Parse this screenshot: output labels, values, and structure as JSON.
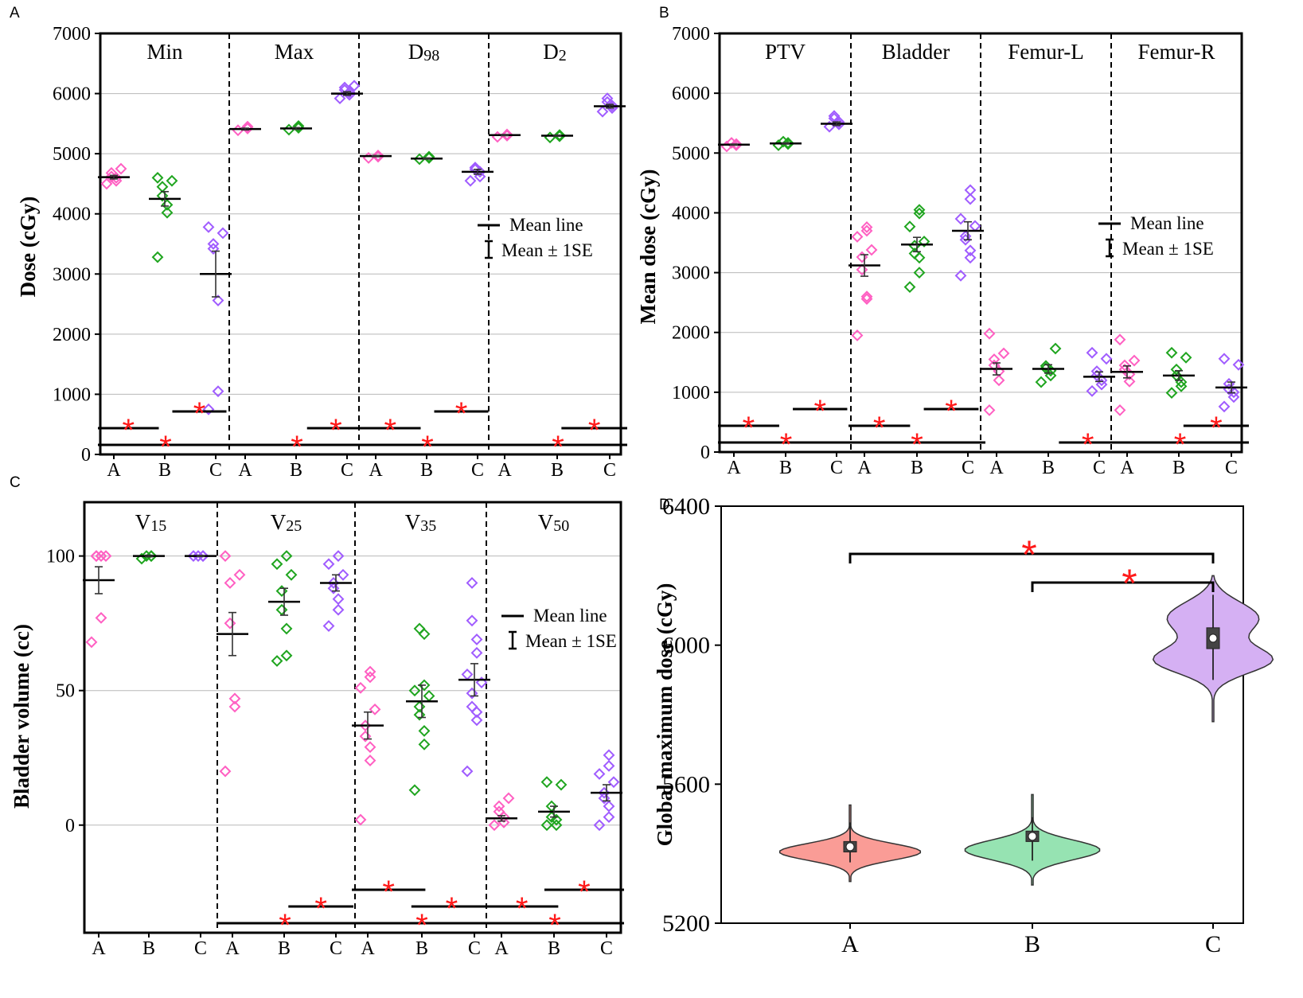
{
  "colors": {
    "A": "#ff5fc2",
    "B": "#1fa51f",
    "C": "#a05cff",
    "star": "#ff1a1a",
    "grid": "#b8b8b8",
    "violinA": "#fa9c96",
    "violinB": "#96e3b2",
    "violinC": "#d5b0f3"
  },
  "legend": {
    "mean_line": "Mean line",
    "mean_se": "Mean ± 1SE"
  },
  "chart_data": [
    {
      "panel": "A",
      "type": "scatter",
      "ylabel": "Dose (cGy)",
      "ylim": [
        0,
        7000
      ],
      "yticks": [
        "0",
        "1000",
        "2000",
        "3000",
        "4000",
        "5000",
        "6000",
        "7000"
      ],
      "categories": [
        "A",
        "B",
        "C"
      ],
      "groups": [
        {
          "title": "Min",
          "sub": "",
          "points": {
            "A": [
              4500,
              4550,
              4600,
              4620,
              4680,
              4750
            ],
            "B": [
              3280,
              4020,
              4150,
              4300,
              4450,
              4550,
              4600
            ],
            "C": [
              750,
              1050,
              2560,
              3420,
              3500,
              3680,
              3780
            ]
          },
          "mean": {
            "A": 4610,
            "B": 4250,
            "C": 3000
          },
          "se": {
            "A": 30,
            "B": 120,
            "C": 380
          },
          "sig": [
            {
              "from": 0,
              "to": 0.9,
              "level": 2
            },
            {
              "from": 1.1,
              "to": 1.9,
              "level": 3
            },
            {
              "from": 0,
              "to": 2,
              "level": 1
            }
          ]
        },
        {
          "title": "Max",
          "sub": "",
          "points": {
            "A": [
              5390,
              5420,
              5450
            ],
            "B": [
              5400,
              5430,
              5460
            ],
            "C": [
              5920,
              5980,
              6020,
              6060,
              6100,
              6130
            ]
          },
          "mean": {
            "A": 5410,
            "B": 5420,
            "C": 6000
          },
          "se": {
            "A": 15,
            "B": 15,
            "C": 30
          },
          "sig": [
            {
              "from": 1.15,
              "to": 2,
              "level": 2
            },
            {
              "from": 0,
              "to": 2,
              "level": 1
            }
          ]
        },
        {
          "title": "D",
          "sub": "98",
          "points": {
            "A": [
              4930,
              4950,
              4970
            ],
            "B": [
              4910,
              4930,
              4950
            ],
            "C": [
              4550,
              4620,
              4700,
              4740,
              4770
            ]
          },
          "mean": {
            "A": 4960,
            "B": 4920,
            "C": 4700
          },
          "se": {
            "A": 10,
            "B": 10,
            "C": 40
          },
          "sig": [
            {
              "from": 0,
              "to": 0.9,
              "level": 2
            },
            {
              "from": 1.1,
              "to": 1.9,
              "level": 3
            },
            {
              "from": 0,
              "to": 2,
              "level": 1
            }
          ]
        },
        {
          "title": "D",
          "sub": "2",
          "points": {
            "A": [
              5280,
              5300,
              5320
            ],
            "B": [
              5270,
              5290,
              5310
            ],
            "C": [
              5700,
              5760,
              5800,
              5860,
              5920
            ]
          },
          "mean": {
            "A": 5310,
            "B": 5300,
            "C": 5790
          },
          "se": {
            "A": 10,
            "B": 10,
            "C": 30
          },
          "sig": [
            {
              "from": 1.05,
              "to": 2,
              "level": 2
            },
            {
              "from": 0,
              "to": 2,
              "level": 1
            }
          ]
        }
      ]
    },
    {
      "panel": "B",
      "type": "scatter",
      "ylabel": "Mean dose (cGy)",
      "ylim": [
        0,
        7000
      ],
      "yticks": [
        "0",
        "1000",
        "2000",
        "3000",
        "4000",
        "5000",
        "6000",
        "7000"
      ],
      "categories": [
        "A",
        "B",
        "C"
      ],
      "groups": [
        {
          "title": "PTV",
          "sub": "",
          "points": {
            "A": [
              5110,
              5130,
              5150,
              5170
            ],
            "B": [
              5130,
              5150,
              5170,
              5190
            ],
            "C": [
              5440,
              5480,
              5520,
              5580,
              5620
            ]
          },
          "mean": {
            "A": 5140,
            "B": 5160,
            "C": 5490
          },
          "se": {
            "A": 10,
            "B": 10,
            "C": 30
          },
          "sig": [
            {
              "from": 0,
              "to": 0.9,
              "level": 2
            },
            {
              "from": 1.1,
              "to": 1.9,
              "level": 3
            },
            {
              "from": 0,
              "to": 2,
              "level": 1
            }
          ]
        },
        {
          "title": "Bladder",
          "sub": "",
          "points": {
            "A": [
              1950,
              2560,
              2600,
              3050,
              3260,
              3380,
              3600,
              3700,
              3760
            ],
            "B": [
              2760,
              3000,
              3250,
              3320,
              3450,
              3520,
              3770,
              3990,
              4050
            ],
            "C": [
              2950,
              3250,
              3370,
              3550,
              3610,
              3780,
              3900,
              4230,
              4380
            ]
          },
          "mean": {
            "A": 3120,
            "B": 3470,
            "C": 3700
          },
          "se": {
            "A": 180,
            "B": 120,
            "C": 150
          },
          "sig": [
            {
              "from": 0,
              "to": 0.9,
              "level": 2
            },
            {
              "from": 1.1,
              "to": 1.9,
              "level": 3
            },
            {
              "from": 0,
              "to": 2,
              "level": 1
            }
          ]
        },
        {
          "title": "Femur-L",
          "sub": "",
          "points": {
            "A": [
              700,
              1200,
              1350,
              1450,
              1550,
              1650,
              1980
            ],
            "B": [
              1170,
              1280,
              1360,
              1400,
              1440,
              1730
            ],
            "C": [
              1020,
              1130,
              1200,
              1280,
              1350,
              1560,
              1660
            ]
          },
          "mean": {
            "A": 1390,
            "B": 1390,
            "C": 1260
          },
          "se": {
            "A": 100,
            "B": 70,
            "C": 80
          },
          "sig": [
            {
              "from": 1.15,
              "to": 2,
              "level": 1
            }
          ]
        },
        {
          "title": "Femur-R",
          "sub": "",
          "points": {
            "A": [
              700,
              1180,
              1300,
              1380,
              1450,
              1530,
              1880
            ],
            "B": [
              990,
              1100,
              1170,
              1280,
              1380,
              1580,
              1660
            ],
            "C": [
              760,
              920,
              1000,
              1050,
              1140,
              1460,
              1560
            ]
          },
          "mean": {
            "A": 1340,
            "B": 1280,
            "C": 1080
          },
          "se": {
            "A": 100,
            "B": 80,
            "C": 90
          },
          "sig": [
            {
              "from": 1.05,
              "to": 2,
              "level": 2
            },
            {
              "from": 0,
              "to": 2,
              "level": 1
            }
          ]
        }
      ]
    },
    {
      "panel": "C",
      "type": "scatter",
      "ylabel": "Bladder volume (cc)",
      "ylim": [
        -40,
        120
      ],
      "yticks": [
        "0",
        "50",
        "100"
      ],
      "categories": [
        "A",
        "B",
        "C"
      ],
      "groups": [
        {
          "title": "V",
          "sub": "15",
          "points": {
            "A": [
              68,
              77,
              100,
              100,
              100,
              100
            ],
            "B": [
              99,
              100,
              100,
              100
            ],
            "C": [
              100,
              100,
              100,
              100
            ]
          },
          "mean": {
            "A": 91,
            "B": 100,
            "C": 100
          },
          "se": {
            "A": 5,
            "B": 0.3,
            "C": 0.2
          },
          "sig": []
        },
        {
          "title": "V",
          "sub": "25",
          "points": {
            "A": [
              20,
              44,
              47,
              75,
              90,
              93,
              100
            ],
            "B": [
              61,
              63,
              73,
              80,
              87,
              93,
              97,
              100
            ],
            "C": [
              74,
              80,
              84,
              88,
              90,
              93,
              97,
              100
            ]
          },
          "mean": {
            "A": 71,
            "B": 83,
            "C": 90
          },
          "se": {
            "A": 8,
            "B": 5,
            "C": 3
          },
          "sig": [
            {
              "from": 1.05,
              "to": 2,
              "level": 2
            },
            {
              "from": 0,
              "to": 2,
              "level": 1
            }
          ]
        },
        {
          "title": "V",
          "sub": "35",
          "points": {
            "A": [
              2,
              24,
              29,
              33,
              37,
              43,
              51,
              55,
              57
            ],
            "B": [
              13,
              30,
              35,
              41,
              44,
              48,
              50,
              52,
              71,
              73
            ],
            "C": [
              20,
              39,
              42,
              44,
              49,
              53,
              56,
              64,
              69,
              76,
              90
            ]
          },
          "mean": {
            "A": 37,
            "B": 46,
            "C": 54
          },
          "se": {
            "A": 5,
            "B": 6,
            "C": 6
          },
          "sig": [
            {
              "from": 0,
              "to": 1.05,
              "level": 3
            },
            {
              "from": 0.85,
              "to": 2,
              "level": 2
            },
            {
              "from": 0,
              "to": 2,
              "level": 1
            }
          ]
        },
        {
          "title": "V",
          "sub": "50",
          "points": {
            "A": [
              0,
              1,
              3,
              5,
              7,
              10
            ],
            "B": [
              0,
              0,
              2,
              3,
              7,
              15,
              16
            ],
            "C": [
              0,
              3,
              7,
              10,
              12,
              16,
              19,
              22,
              26
            ]
          },
          "mean": {
            "A": 2.5,
            "B": 5,
            "C": 12
          },
          "se": {
            "A": 1,
            "B": 2,
            "C": 3
          },
          "sig": [
            {
              "from": 0,
              "to": 1.05,
              "level": 2
            },
            {
              "from": 0.85,
              "to": 2,
              "level": 3
            },
            {
              "from": 0,
              "to": 2,
              "level": 1
            }
          ]
        }
      ]
    },
    {
      "panel": "D",
      "type": "violin",
      "ylabel": "Global maximum dose (cGy)",
      "ylim": [
        5200,
        6400
      ],
      "yticks": [
        "5200",
        "5600",
        "6000",
        "6400"
      ],
      "categories": [
        "A",
        "B",
        "C"
      ],
      "violins": {
        "A": {
          "min": 5320,
          "max": 5540,
          "median": 5420,
          "q1": 5405,
          "q3": 5435,
          "wmin": 5375,
          "wmax": 5490
        },
        "B": {
          "min": 5310,
          "max": 5570,
          "median": 5450,
          "q1": 5435,
          "q3": 5465,
          "wmin": 5380,
          "wmax": 5505
        },
        "C": {
          "min": 5780,
          "max": 6200,
          "median": 6020,
          "q1": 5990,
          "q3": 6050,
          "wmin": 5900,
          "wmax": 6145
        }
      },
      "sig": [
        {
          "from": "A",
          "to": "C"
        },
        {
          "from": "B",
          "to": "C"
        }
      ]
    }
  ]
}
